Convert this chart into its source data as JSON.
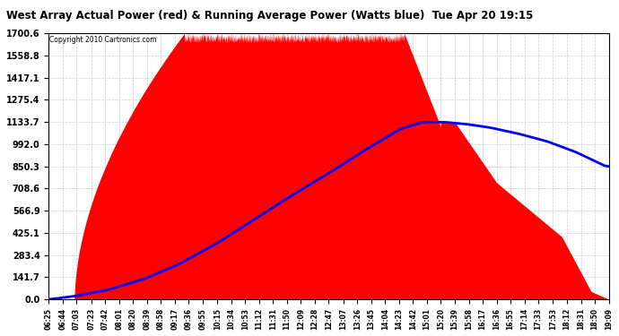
{
  "title": "West Array Actual Power (red) & Running Average Power (Watts blue)  Tue Apr 20 19:15",
  "copyright": "Copyright 2010 Cartronics.com",
  "background_color": "#ffffff",
  "plot_bg_color": "#ffffff",
  "grid_color": "#cccccc",
  "yticks": [
    0.0,
    141.7,
    283.4,
    425.1,
    566.9,
    708.6,
    850.3,
    992.0,
    1133.7,
    1275.4,
    1417.1,
    1558.8,
    1700.6
  ],
  "ymax": 1700.6,
  "ymin": 0.0,
  "actual_color": "#ff0000",
  "avg_color": "#0000ff",
  "xtick_labels": [
    "06:25",
    "06:44",
    "07:03",
    "07:23",
    "07:42",
    "08:01",
    "08:20",
    "08:39",
    "08:58",
    "09:17",
    "09:36",
    "09:55",
    "10:15",
    "10:34",
    "10:53",
    "11:12",
    "11:31",
    "11:50",
    "12:09",
    "12:28",
    "12:47",
    "13:07",
    "13:26",
    "13:45",
    "14:04",
    "14:23",
    "14:42",
    "15:01",
    "15:20",
    "15:39",
    "15:58",
    "16:17",
    "16:36",
    "16:55",
    "17:14",
    "17:33",
    "17:53",
    "18:12",
    "18:31",
    "18:50",
    "19:09"
  ],
  "blue_avg_points_x": [
    0,
    35,
    80,
    130,
    180,
    230,
    280,
    330,
    380,
    430,
    480,
    510,
    540,
    570,
    600,
    640,
    680,
    720,
    760
  ],
  "blue_avg_points_y": [
    0,
    20,
    60,
    130,
    230,
    360,
    510,
    660,
    800,
    950,
    1090,
    1133,
    1133,
    1120,
    1100,
    1060,
    1010,
    940,
    850
  ]
}
